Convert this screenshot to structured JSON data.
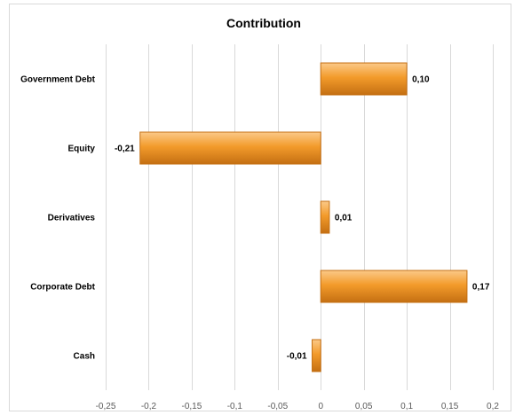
{
  "chart_data": {
    "type": "bar",
    "orientation": "horizontal",
    "title": "Contribution",
    "categories": [
      "Government Debt",
      "Equity",
      "Derivatives",
      "Corporate Debt",
      "Cash"
    ],
    "series": [
      {
        "values": [
          0.1,
          -0.21,
          0.01,
          0.17,
          -0.01
        ],
        "data_labels": [
          "0,10",
          "-0,21",
          "0,01",
          "0,17",
          "-0,01"
        ]
      }
    ],
    "xlim": [
      -0.25,
      0.2
    ],
    "xticks": [
      -0.25,
      -0.2,
      -0.15,
      -0.1,
      -0.05,
      0,
      0.05,
      0.1,
      0.15,
      0.2
    ],
    "xtick_labels": [
      "-0,25",
      "-0,2",
      "-0,15",
      "-0,1",
      "-0,05",
      "0",
      "0,05",
      "0,1",
      "0,15",
      "0,2"
    ],
    "grid": "vertical",
    "legend": "none",
    "bar_color": "#f39b2b",
    "bar_color_light": "#fbc989",
    "bar_color_dark": "#c46f12"
  }
}
